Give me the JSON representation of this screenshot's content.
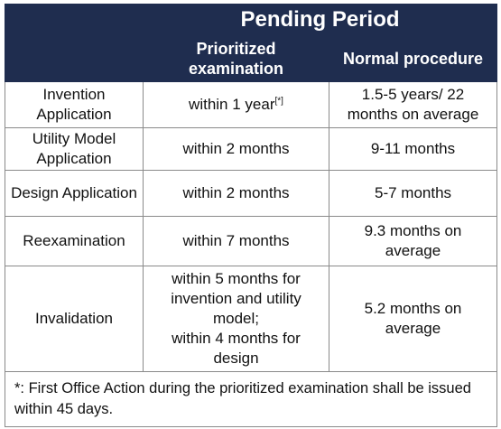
{
  "header": {
    "group_title": "Pending Period",
    "col_prioritized": "Prioritized examination",
    "col_normal": "Normal procedure"
  },
  "rows": [
    {
      "type": "Invention Application",
      "prioritized": "within 1 year",
      "prioritized_note_mark": "[*]",
      "normal": "1.5-5 years/ 22 months on average"
    },
    {
      "type": "Utility Model Application",
      "prioritized": "within 2 months",
      "normal": "9-11 months"
    },
    {
      "type": "Design Application",
      "prioritized": "within 2 months",
      "normal": "5-7 months"
    },
    {
      "type": "Reexamination",
      "prioritized": "within 7 months",
      "normal": "9.3 months on average"
    },
    {
      "type": "Invalidation",
      "prioritized_lines": [
        "within 5 months for",
        "invention and utility",
        "model;",
        "within 4 months for",
        "design"
      ],
      "normal": "5.2 months on average"
    }
  ],
  "footnote": "*: First Office Action during the prioritized examination shall be issued within 45 days."
}
